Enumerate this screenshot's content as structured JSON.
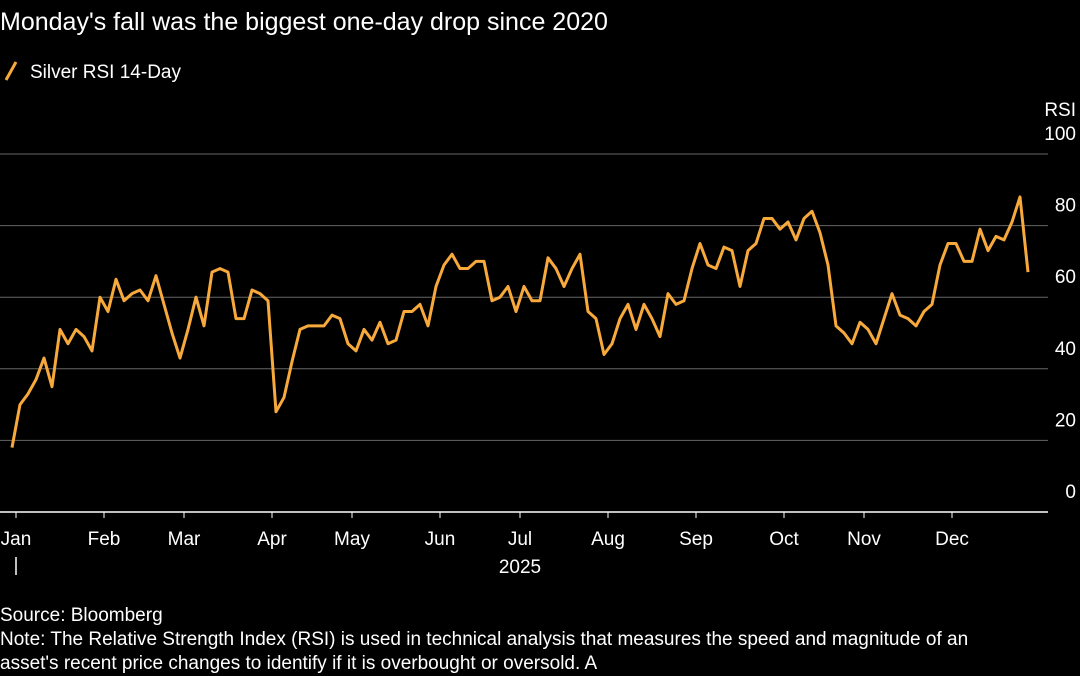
{
  "chart_data": {
    "type": "line",
    "title": "Monday's fall was the biggest one-day drop since 2020",
    "y_label": "RSI",
    "x_label": "2025",
    "source": "Source: Bloomberg",
    "note": "Note: The Relative Strength Index (RSI) is used in technical analysis that measures the speed and magnitude of an asset's recent price changes to identify if it is overbought or oversold. A",
    "ylim": [
      0,
      100
    ],
    "yticks": [
      0,
      20,
      40,
      60,
      80,
      100
    ],
    "grid": true,
    "categories": [
      "Jan",
      null,
      null,
      null,
      null,
      null,
      null,
      null,
      null,
      null,
      null,
      "Feb",
      null,
      null,
      null,
      null,
      null,
      null,
      null,
      null,
      null,
      "Mar",
      null,
      null,
      null,
      null,
      null,
      null,
      null,
      null,
      null,
      null,
      "Apr",
      null,
      null,
      null,
      null,
      null,
      null,
      null,
      null,
      null,
      "May",
      null,
      null,
      null,
      null,
      null,
      null,
      null,
      null,
      null,
      null,
      "Jun",
      null,
      null,
      null,
      null,
      null,
      null,
      null,
      null,
      null,
      "Jul",
      null,
      null,
      null,
      null,
      null,
      null,
      null,
      null,
      null,
      null,
      "Aug",
      null,
      null,
      null,
      null,
      null,
      null,
      null,
      null,
      null,
      null,
      "Sep",
      null,
      null,
      null,
      null,
      null,
      null,
      null,
      null,
      null,
      null,
      "Oct",
      null,
      null,
      null,
      null,
      null,
      null,
      null,
      null,
      null,
      "Nov",
      null,
      null,
      null,
      null,
      null,
      null,
      null,
      null,
      null,
      null,
      "Dec",
      null,
      null,
      null,
      null,
      null,
      null,
      null,
      null,
      null,
      null
    ],
    "series": [
      {
        "name": "Silver RSI 14-Day",
        "color": "#f7a93b",
        "values": [
          18,
          30,
          33,
          37,
          43,
          35,
          51,
          47,
          51,
          49,
          45,
          60,
          56,
          65,
          59,
          61,
          62,
          59,
          66,
          58,
          50,
          43,
          51,
          60,
          52,
          67,
          68,
          67,
          54,
          54,
          62,
          61,
          59,
          28,
          32,
          42,
          51,
          52,
          52,
          52,
          55,
          54,
          47,
          45,
          51,
          48,
          53,
          47,
          48,
          56,
          56,
          58,
          52,
          63,
          69,
          72,
          68,
          68,
          70,
          70,
          59,
          60,
          63,
          56,
          63,
          59,
          59,
          71,
          68,
          63,
          68,
          72,
          56,
          54,
          44,
          47,
          54,
          58,
          51,
          58,
          54,
          49,
          61,
          58,
          59,
          68,
          75,
          69,
          68,
          74,
          73,
          63,
          73,
          75,
          82,
          82,
          79,
          81,
          76,
          82,
          84,
          78,
          69,
          52,
          50,
          47,
          53,
          51,
          47,
          54,
          61,
          55,
          54,
          52,
          56,
          58,
          69,
          75,
          75,
          70,
          70,
          79,
          73,
          77,
          76,
          81,
          88,
          67
        ]
      }
    ]
  }
}
